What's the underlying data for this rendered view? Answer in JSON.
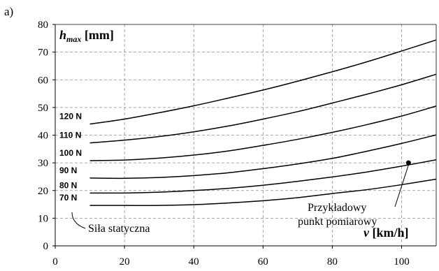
{
  "panel_label": "a)",
  "chart_data": {
    "type": "line",
    "title": "",
    "xlabel_var": "v",
    "xlabel_unit": " [km/h]",
    "ylabel_var": "h",
    "ylabel_sub": "max",
    "ylabel_unit": " [mm]",
    "xlim": [
      0,
      110
    ],
    "ylim": [
      0,
      80
    ],
    "xticks": [
      0,
      20,
      40,
      60,
      80,
      100
    ],
    "yticks": [
      0,
      10,
      20,
      30,
      40,
      50,
      60,
      70,
      80
    ],
    "grid": true,
    "x": [
      10,
      20,
      30,
      40,
      50,
      60,
      70,
      80,
      90,
      100,
      110
    ],
    "series": [
      {
        "name": "70 N",
        "values": [
          14.6,
          14.6,
          14.6,
          14.9,
          15.5,
          16.3,
          17.4,
          18.9,
          20.3,
          22.1,
          24.1
        ]
      },
      {
        "name": "80 N",
        "values": [
          19.1,
          19.1,
          19.4,
          20.0,
          20.8,
          21.9,
          23.3,
          24.9,
          26.7,
          28.8,
          31.1
        ]
      },
      {
        "name": "90 N",
        "values": [
          24.5,
          24.4,
          24.7,
          25.4,
          26.4,
          27.9,
          29.6,
          31.6,
          34.2,
          37.0,
          40.1
        ]
      },
      {
        "name": "100 N",
        "values": [
          30.8,
          31.0,
          31.7,
          32.8,
          34.3,
          36.3,
          38.5,
          41.0,
          43.8,
          46.9,
          50.5
        ]
      },
      {
        "name": "110 N",
        "values": [
          37.2,
          38.2,
          39.5,
          41.2,
          43.3,
          45.8,
          48.5,
          51.6,
          54.8,
          58.2,
          62.0
        ]
      },
      {
        "name": "120 N",
        "values": [
          44.0,
          45.8,
          48.1,
          50.6,
          53.4,
          56.3,
          59.5,
          62.9,
          66.5,
          70.4,
          74.4
        ]
      }
    ],
    "measurement_point": {
      "x": 102,
      "y": 30
    },
    "annotations": {
      "static_force": "Siła statyczna",
      "example_point_line1": "Przykładowy",
      "example_point_line2": "punkt pomiarowy"
    },
    "colors": {
      "line": "#000000",
      "grid": "#8c8c8c",
      "axis": "#000000"
    }
  }
}
